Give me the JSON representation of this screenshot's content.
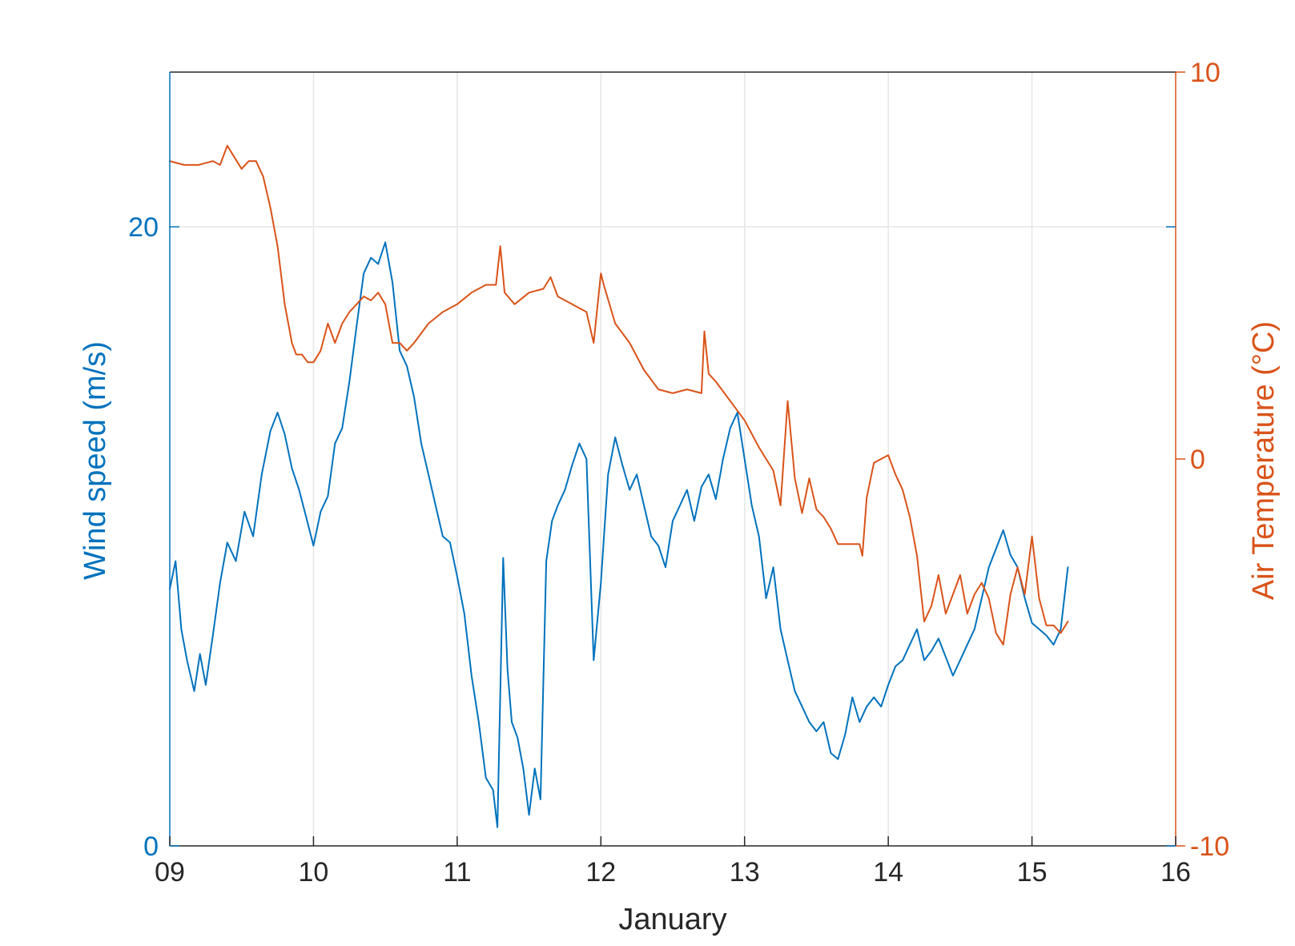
{
  "chart_data": {
    "type": "line",
    "xlabel": "January",
    "x_ticks": [
      "09",
      "10",
      "11",
      "12",
      "13",
      "14",
      "15",
      "16"
    ],
    "xlim": [
      9,
      16
    ],
    "grid": true,
    "y_left": {
      "label": "Wind speed (m/s)",
      "lim": [
        0,
        25
      ],
      "ticks": [
        0,
        20
      ],
      "color": "#0072BD"
    },
    "y_right": {
      "label": "Air Temperature (°C)",
      "lim": [
        -10,
        10
      ],
      "ticks": [
        -10,
        0,
        10
      ],
      "tick_labels": [
        "-10",
        "0",
        "10"
      ],
      "color": "#D95319"
    },
    "series": [
      {
        "axis": "left",
        "color": "#0072BD",
        "x": [
          9.0,
          9.04,
          9.08,
          9.12,
          9.17,
          9.21,
          9.25,
          9.3,
          9.35,
          9.4,
          9.46,
          9.52,
          9.58,
          9.64,
          9.7,
          9.75,
          9.8,
          9.85,
          9.9,
          9.95,
          10.0,
          10.05,
          10.1,
          10.15,
          10.2,
          10.25,
          10.3,
          10.35,
          10.4,
          10.45,
          10.5,
          10.55,
          10.6,
          10.65,
          10.7,
          10.75,
          10.8,
          10.85,
          10.9,
          10.95,
          11.0,
          11.05,
          11.1,
          11.15,
          11.2,
          11.25,
          11.28,
          11.32,
          11.35,
          11.38,
          11.42,
          11.46,
          11.5,
          11.54,
          11.58,
          11.62,
          11.66,
          11.7,
          11.75,
          11.8,
          11.85,
          11.9,
          11.95,
          12.0,
          12.05,
          12.1,
          12.15,
          12.2,
          12.25,
          12.3,
          12.35,
          12.4,
          12.45,
          12.5,
          12.55,
          12.6,
          12.65,
          12.7,
          12.75,
          12.8,
          12.85,
          12.9,
          12.95,
          13.0,
          13.05,
          13.1,
          13.15,
          13.2,
          13.25,
          13.3,
          13.35,
          13.4,
          13.45,
          13.5,
          13.55,
          13.6,
          13.65,
          13.7,
          13.75,
          13.8,
          13.85,
          13.9,
          13.95,
          14.0,
          14.05,
          14.1,
          14.15,
          14.2,
          14.25,
          14.3,
          14.35,
          14.4,
          14.45,
          14.5,
          14.55,
          14.6,
          14.65,
          14.7,
          14.75,
          14.8,
          14.85,
          14.9,
          14.95,
          15.0,
          15.05,
          15.1,
          15.15,
          15.2,
          15.25
        ],
        "y": [
          8.3,
          9.2,
          7.0,
          6.0,
          5.0,
          6.2,
          5.2,
          6.8,
          8.5,
          9.8,
          9.2,
          10.8,
          10.0,
          12.0,
          13.4,
          14.0,
          13.3,
          12.2,
          11.5,
          10.6,
          9.7,
          10.8,
          11.3,
          13.0,
          13.5,
          15.0,
          16.8,
          18.5,
          19.0,
          18.8,
          19.5,
          18.2,
          16.0,
          15.5,
          14.5,
          13.0,
          12.0,
          11.0,
          10.0,
          9.8,
          8.7,
          7.5,
          5.5,
          4.0,
          2.2,
          1.8,
          0.6,
          9.3,
          5.7,
          4.0,
          3.5,
          2.5,
          1.0,
          2.5,
          1.5,
          9.2,
          10.5,
          11.0,
          11.5,
          12.3,
          13.0,
          12.5,
          6.0,
          8.5,
          12.0,
          13.2,
          12.3,
          11.5,
          12.0,
          11.0,
          10.0,
          9.7,
          9.0,
          10.5,
          11.0,
          11.5,
          10.5,
          11.6,
          12.0,
          11.2,
          12.5,
          13.5,
          14.0,
          12.5,
          11.0,
          10.0,
          8.0,
          9.0,
          7.0,
          6.0,
          5.0,
          4.5,
          4.0,
          3.7,
          4.0,
          3.0,
          2.8,
          3.6,
          4.8,
          4.0,
          4.5,
          4.8,
          4.5,
          5.2,
          5.8,
          6.0,
          6.5,
          7.0,
          6.0,
          6.3,
          6.7,
          6.1,
          5.5,
          6.0,
          6.5,
          7.0,
          8.0,
          9.0,
          9.6,
          10.2,
          9.4,
          9.0,
          8.0,
          7.2,
          7.0,
          6.8,
          6.5,
          7.0,
          9.0
        ]
      },
      {
        "axis": "right",
        "color": "#D95319",
        "x": [
          9.0,
          9.1,
          9.2,
          9.3,
          9.35,
          9.4,
          9.45,
          9.5,
          9.55,
          9.6,
          9.65,
          9.7,
          9.75,
          9.8,
          9.85,
          9.88,
          9.92,
          9.96,
          10.0,
          10.05,
          10.1,
          10.15,
          10.2,
          10.25,
          10.3,
          10.35,
          10.4,
          10.45,
          10.5,
          10.55,
          10.6,
          10.65,
          10.7,
          10.8,
          10.9,
          11.0,
          11.1,
          11.2,
          11.27,
          11.3,
          11.33,
          11.4,
          11.5,
          11.6,
          11.65,
          11.7,
          11.8,
          11.9,
          11.95,
          12.0,
          12.02,
          12.1,
          12.2,
          12.3,
          12.4,
          12.5,
          12.6,
          12.7,
          12.72,
          12.75,
          12.8,
          12.9,
          13.0,
          13.1,
          13.2,
          13.25,
          13.3,
          13.35,
          13.4,
          13.45,
          13.5,
          13.55,
          13.6,
          13.65,
          13.7,
          13.8,
          13.82,
          13.85,
          13.9,
          14.0,
          14.05,
          14.1,
          14.15,
          14.2,
          14.25,
          14.3,
          14.35,
          14.4,
          14.45,
          14.5,
          14.55,
          14.6,
          14.65,
          14.7,
          14.75,
          14.8,
          14.85,
          14.9,
          14.95,
          15.0,
          15.05,
          15.1,
          15.15,
          15.2,
          15.25
        ],
        "y": [
          7.7,
          7.6,
          7.6,
          7.7,
          7.6,
          8.1,
          7.8,
          7.5,
          7.7,
          7.7,
          7.3,
          6.5,
          5.5,
          4.0,
          3.0,
          2.7,
          2.7,
          2.5,
          2.5,
          2.8,
          3.5,
          3.0,
          3.5,
          3.8,
          4.0,
          4.2,
          4.1,
          4.3,
          4.0,
          3.0,
          3.0,
          2.8,
          3.0,
          3.5,
          3.8,
          4.0,
          4.3,
          4.5,
          4.5,
          5.5,
          4.3,
          4.0,
          4.3,
          4.4,
          4.7,
          4.2,
          4.0,
          3.8,
          3.0,
          4.8,
          4.5,
          3.5,
          3.0,
          2.3,
          1.8,
          1.7,
          1.8,
          1.7,
          3.3,
          2.2,
          2.0,
          1.5,
          1.0,
          0.3,
          -0.3,
          -1.2,
          1.5,
          -0.5,
          -1.4,
          -0.5,
          -1.3,
          -1.5,
          -1.8,
          -2.2,
          -2.2,
          -2.2,
          -2.5,
          -1.0,
          -0.1,
          0.1,
          -0.4,
          -0.8,
          -1.5,
          -2.5,
          -4.2,
          -3.8,
          -3.0,
          -4.0,
          -3.5,
          -3.0,
          -4.0,
          -3.5,
          -3.2,
          -3.6,
          -4.5,
          -4.8,
          -3.5,
          -2.8,
          -3.5,
          -2.0,
          -3.6,
          -4.3,
          -4.3,
          -4.5,
          -4.2
        ]
      }
    ]
  }
}
